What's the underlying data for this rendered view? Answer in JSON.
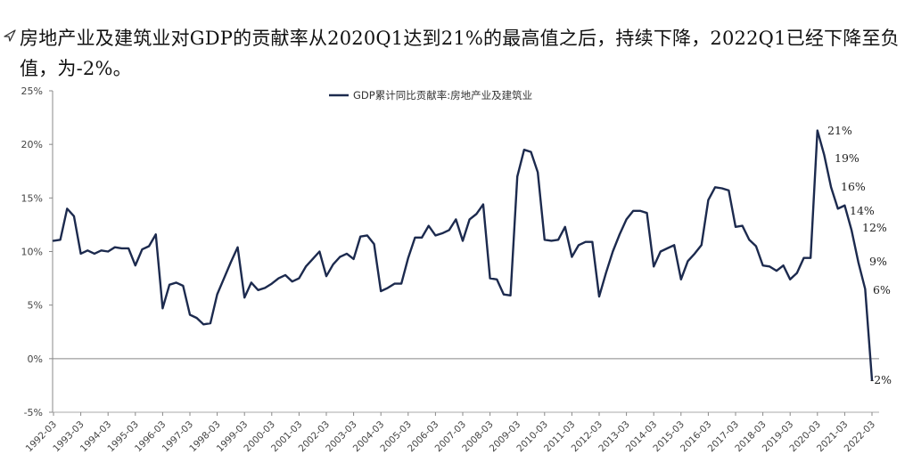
{
  "header": {
    "text": "房地产业及建筑业对GDP的贡献率从2020Q1达到21%的最高值之后，持续下降，2022Q1已经下降至负值，为-2%。"
  },
  "chart_data": {
    "type": "line",
    "title": "",
    "xlabel": "",
    "ylabel": "",
    "ylim": [
      -5,
      25
    ],
    "yticks": [
      25,
      20,
      15,
      10,
      5,
      0,
      -5
    ],
    "ytick_labels": [
      "25%",
      "20%",
      "15%",
      "10%",
      "5%",
      "0%",
      "-5%"
    ],
    "xticks": [
      "1992-03",
      "1993-03",
      "1994-03",
      "1995-03",
      "1996-03",
      "1997-03",
      "1998-03",
      "1999-03",
      "2000-03",
      "2001-03",
      "2002-03",
      "2003-03",
      "2004-03",
      "2005-03",
      "2006-03",
      "2007-03",
      "2008-03",
      "2009-03",
      "2010-03",
      "2011-03",
      "2012-03",
      "2013-03",
      "2014-03",
      "2015-03",
      "2016-03",
      "2017-03",
      "2018-03",
      "2019-03",
      "2020-03",
      "2021-03",
      "2022-03"
    ],
    "legend": "top-center",
    "color": "#1c2a4e",
    "series": [
      {
        "name": "GDP累计同比贡献率:房地产业及建筑业",
        "values": [
          11.0,
          11.1,
          14.0,
          13.3,
          9.8,
          10.1,
          9.8,
          10.1,
          10.0,
          10.4,
          10.3,
          10.3,
          8.7,
          10.2,
          10.5,
          11.6,
          4.7,
          6.9,
          7.1,
          6.8,
          4.1,
          3.8,
          3.2,
          3.3,
          6.0,
          7.5,
          9.0,
          10.4,
          5.7,
          7.1,
          6.4,
          6.6,
          7.0,
          7.5,
          7.8,
          7.2,
          7.5,
          8.6,
          9.3,
          10.0,
          7.7,
          8.8,
          9.5,
          9.8,
          9.3,
          11.4,
          11.5,
          10.7,
          6.3,
          6.6,
          7.0,
          7.0,
          9.4,
          11.3,
          11.3,
          12.4,
          11.5,
          11.7,
          12.0,
          13.0,
          11.0,
          13.0,
          13.5,
          14.4,
          7.5,
          7.4,
          6.0,
          5.9,
          17.0,
          19.5,
          19.3,
          17.4,
          11.1,
          11.0,
          11.1,
          12.3,
          9.5,
          10.6,
          10.9,
          10.9,
          5.8,
          8.0,
          10.0,
          11.6,
          13.0,
          13.8,
          13.8,
          13.6,
          8.6,
          10.0,
          10.3,
          10.6,
          7.4,
          9.1,
          9.8,
          10.6,
          14.8,
          16.0,
          15.9,
          15.7,
          12.3,
          12.4,
          11.1,
          10.5,
          8.7,
          8.6,
          8.2,
          8.7,
          7.4,
          8.0,
          9.4,
          9.4,
          21.3,
          19.0,
          16.0,
          14.0,
          14.3,
          12.0,
          9.0,
          6.5,
          -2.0
        ]
      }
    ],
    "annotations": [
      "21%",
      "19%",
      "16%",
      "14%",
      "12%",
      "9%",
      "6%",
      "-2%"
    ]
  }
}
